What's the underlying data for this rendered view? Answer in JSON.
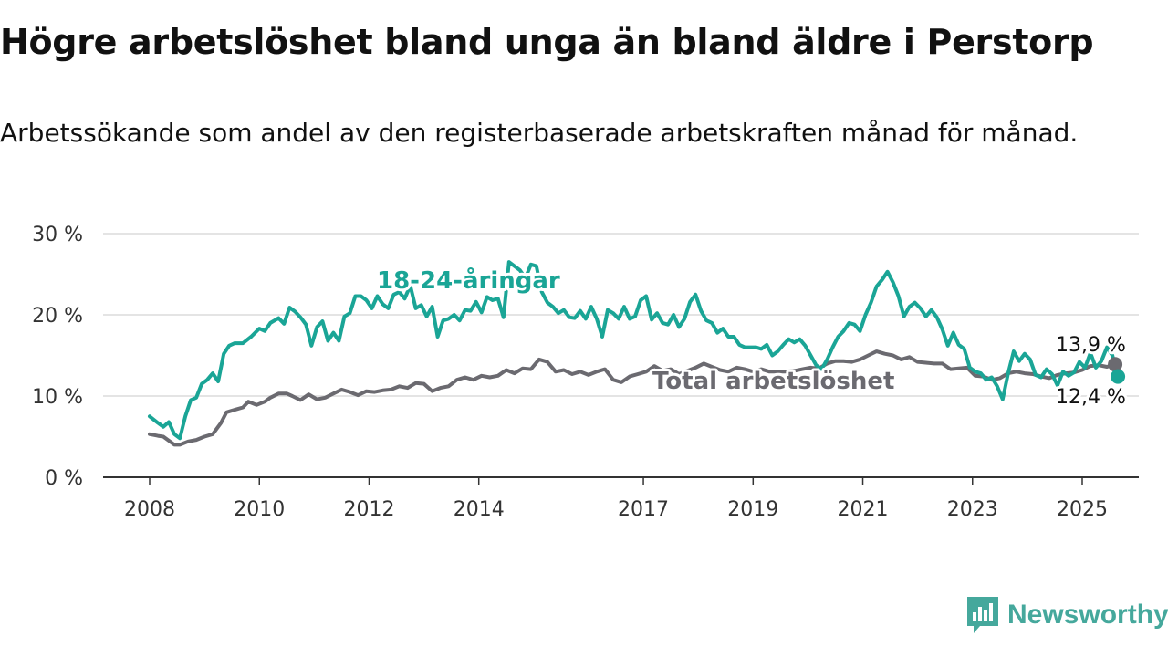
{
  "title": "Högre arbetslöshet bland unga än bland äldre i Perstorp",
  "subtitle": "Arbetssökande som andel av den registerbaserade arbetskraften månad för månad.",
  "brand": {
    "name": "Newsworthy",
    "icon": "bar-chart-icon",
    "color": "#45a89c"
  },
  "chart_data": {
    "type": "line",
    "ylim": [
      0,
      30
    ],
    "xlim": [
      2008.0,
      2025.5
    ],
    "yticks": [
      0,
      10,
      20,
      30
    ],
    "ytick_labels": [
      "0 %",
      "10 %",
      "20 %",
      "30 %"
    ],
    "xticks": [
      2008,
      2010,
      2012,
      2014,
      2017,
      2019,
      2021,
      2023,
      2025
    ],
    "xtick_labels": [
      "2008",
      "2010",
      "2012",
      "2014",
      "2017",
      "2019",
      "2021",
      "2023",
      "2025"
    ],
    "grid": true,
    "series": [
      {
        "name": "18-24-åringar",
        "color": "#1aa596",
        "end_label": "12,4 %",
        "points": [
          [
            2008.0,
            7.5
          ],
          [
            2008.15,
            6.7
          ],
          [
            2008.25,
            6.2
          ],
          [
            2008.35,
            6.8
          ],
          [
            2008.45,
            5.3
          ],
          [
            2008.55,
            4.8
          ],
          [
            2008.65,
            7.5
          ],
          [
            2008.75,
            9.5
          ],
          [
            2008.85,
            9.8
          ],
          [
            2008.95,
            11.5
          ],
          [
            2009.05,
            12.0
          ],
          [
            2009.15,
            12.8
          ],
          [
            2009.25,
            11.8
          ],
          [
            2009.35,
            15.2
          ],
          [
            2009.45,
            16.2
          ],
          [
            2009.55,
            16.5
          ],
          [
            2009.7,
            16.5
          ],
          [
            2009.85,
            17.3
          ],
          [
            2010.0,
            18.3
          ],
          [
            2010.1,
            18.0
          ],
          [
            2010.2,
            19.0
          ],
          [
            2010.35,
            19.6
          ],
          [
            2010.45,
            18.9
          ],
          [
            2010.55,
            20.9
          ],
          [
            2010.65,
            20.4
          ],
          [
            2010.75,
            19.7
          ],
          [
            2010.85,
            18.8
          ],
          [
            2010.95,
            16.2
          ],
          [
            2011.05,
            18.5
          ],
          [
            2011.15,
            19.2
          ],
          [
            2011.25,
            16.8
          ],
          [
            2011.35,
            17.8
          ],
          [
            2011.45,
            16.8
          ],
          [
            2011.55,
            19.8
          ],
          [
            2011.65,
            20.2
          ],
          [
            2011.75,
            22.3
          ],
          [
            2011.85,
            22.3
          ],
          [
            2011.95,
            21.8
          ],
          [
            2012.05,
            20.8
          ],
          [
            2012.15,
            22.3
          ],
          [
            2012.25,
            21.3
          ],
          [
            2012.35,
            20.8
          ],
          [
            2012.45,
            22.5
          ],
          [
            2012.55,
            22.8
          ],
          [
            2012.65,
            22.0
          ],
          [
            2012.75,
            23.6
          ],
          [
            2012.85,
            20.8
          ],
          [
            2012.95,
            21.2
          ],
          [
            2013.05,
            19.8
          ],
          [
            2013.15,
            21.0
          ],
          [
            2013.25,
            17.3
          ],
          [
            2013.35,
            19.3
          ],
          [
            2013.45,
            19.5
          ],
          [
            2013.55,
            20.0
          ],
          [
            2013.65,
            19.3
          ],
          [
            2013.75,
            20.6
          ],
          [
            2013.85,
            20.5
          ],
          [
            2013.95,
            21.6
          ],
          [
            2014.05,
            20.3
          ],
          [
            2014.15,
            22.2
          ],
          [
            2014.25,
            21.8
          ],
          [
            2014.35,
            22.0
          ],
          [
            2014.45,
            19.7
          ],
          [
            2014.55,
            26.5
          ],
          [
            2014.65,
            26.0
          ],
          [
            2014.75,
            25.5
          ],
          [
            2014.85,
            24.5
          ],
          [
            2014.95,
            26.2
          ],
          [
            2015.05,
            26.0
          ],
          [
            2015.15,
            22.8
          ],
          [
            2015.25,
            21.5
          ],
          [
            2015.35,
            21.0
          ],
          [
            2015.45,
            20.2
          ],
          [
            2015.55,
            20.6
          ],
          [
            2015.65,
            19.7
          ],
          [
            2015.75,
            19.6
          ],
          [
            2015.85,
            20.5
          ],
          [
            2015.95,
            19.5
          ],
          [
            2016.05,
            21.0
          ],
          [
            2016.15,
            19.5
          ],
          [
            2016.25,
            17.3
          ],
          [
            2016.35,
            20.6
          ],
          [
            2016.45,
            20.2
          ],
          [
            2016.55,
            19.5
          ],
          [
            2016.65,
            21.0
          ],
          [
            2016.75,
            19.5
          ],
          [
            2016.85,
            19.8
          ],
          [
            2016.95,
            21.8
          ],
          [
            2017.05,
            22.3
          ],
          [
            2017.15,
            19.4
          ],
          [
            2017.25,
            20.2
          ],
          [
            2017.35,
            19.0
          ],
          [
            2017.45,
            18.8
          ],
          [
            2017.55,
            20.0
          ],
          [
            2017.65,
            18.5
          ],
          [
            2017.75,
            19.5
          ],
          [
            2017.85,
            21.6
          ],
          [
            2017.95,
            22.5
          ],
          [
            2018.05,
            20.5
          ],
          [
            2018.15,
            19.3
          ],
          [
            2018.25,
            19.0
          ],
          [
            2018.35,
            17.8
          ],
          [
            2018.45,
            18.3
          ],
          [
            2018.55,
            17.3
          ],
          [
            2018.65,
            17.3
          ],
          [
            2018.75,
            16.3
          ],
          [
            2018.85,
            16.0
          ],
          [
            2018.95,
            16.0
          ],
          [
            2019.05,
            16.0
          ],
          [
            2019.15,
            15.8
          ],
          [
            2019.25,
            16.3
          ],
          [
            2019.35,
            15.0
          ],
          [
            2019.45,
            15.5
          ],
          [
            2019.55,
            16.3
          ],
          [
            2019.65,
            17.0
          ],
          [
            2019.75,
            16.6
          ],
          [
            2019.85,
            17.0
          ],
          [
            2019.95,
            16.2
          ],
          [
            2020.05,
            15.0
          ],
          [
            2020.15,
            13.8
          ],
          [
            2020.25,
            13.3
          ],
          [
            2020.35,
            14.5
          ],
          [
            2020.45,
            16.0
          ],
          [
            2020.55,
            17.3
          ],
          [
            2020.65,
            18.0
          ],
          [
            2020.75,
            19.0
          ],
          [
            2020.85,
            18.8
          ],
          [
            2020.95,
            18.0
          ],
          [
            2021.05,
            20.0
          ],
          [
            2021.15,
            21.5
          ],
          [
            2021.25,
            23.5
          ],
          [
            2021.35,
            24.3
          ],
          [
            2021.45,
            25.3
          ],
          [
            2021.55,
            24.0
          ],
          [
            2021.65,
            22.3
          ],
          [
            2021.75,
            19.8
          ],
          [
            2021.85,
            21.0
          ],
          [
            2021.95,
            21.5
          ],
          [
            2022.05,
            20.8
          ],
          [
            2022.15,
            19.8
          ],
          [
            2022.25,
            20.6
          ],
          [
            2022.35,
            19.7
          ],
          [
            2022.45,
            18.2
          ],
          [
            2022.55,
            16.2
          ],
          [
            2022.65,
            17.8
          ],
          [
            2022.75,
            16.3
          ],
          [
            2022.85,
            15.8
          ],
          [
            2022.95,
            13.5
          ],
          [
            2023.05,
            13.0
          ],
          [
            2023.15,
            12.8
          ],
          [
            2023.25,
            12.0
          ],
          [
            2023.35,
            12.3
          ],
          [
            2023.45,
            11.2
          ],
          [
            2023.55,
            9.6
          ],
          [
            2023.65,
            12.8
          ],
          [
            2023.75,
            15.5
          ],
          [
            2023.85,
            14.3
          ],
          [
            2023.95,
            15.2
          ],
          [
            2024.05,
            14.5
          ],
          [
            2024.15,
            12.6
          ],
          [
            2024.25,
            12.3
          ],
          [
            2024.35,
            13.3
          ],
          [
            2024.45,
            12.7
          ],
          [
            2024.55,
            11.3
          ],
          [
            2024.65,
            13.0
          ],
          [
            2024.75,
            12.5
          ],
          [
            2024.85,
            12.9
          ],
          [
            2024.95,
            14.2
          ],
          [
            2025.05,
            13.5
          ],
          [
            2025.15,
            15.3
          ],
          [
            2025.25,
            13.5
          ],
          [
            2025.35,
            14.3
          ],
          [
            2025.45,
            16.0
          ],
          [
            2025.55,
            15.0
          ],
          [
            2025.65,
            12.4
          ]
        ]
      },
      {
        "name": "Total arbetslöshet",
        "color": "#6b6a70",
        "end_label": "13,9 %",
        "points": [
          [
            2008.0,
            5.3
          ],
          [
            2008.15,
            5.1
          ],
          [
            2008.25,
            5.0
          ],
          [
            2008.35,
            4.5
          ],
          [
            2008.45,
            4.0
          ],
          [
            2008.55,
            4.0
          ],
          [
            2008.7,
            4.4
          ],
          [
            2008.85,
            4.6
          ],
          [
            2009.0,
            5.0
          ],
          [
            2009.15,
            5.3
          ],
          [
            2009.3,
            6.7
          ],
          [
            2009.4,
            8.0
          ],
          [
            2009.55,
            8.3
          ],
          [
            2009.7,
            8.6
          ],
          [
            2009.8,
            9.3
          ],
          [
            2009.95,
            8.9
          ],
          [
            2010.1,
            9.3
          ],
          [
            2010.2,
            9.8
          ],
          [
            2010.35,
            10.3
          ],
          [
            2010.5,
            10.3
          ],
          [
            2010.6,
            10.0
          ],
          [
            2010.75,
            9.5
          ],
          [
            2010.9,
            10.2
          ],
          [
            2011.05,
            9.6
          ],
          [
            2011.2,
            9.8
          ],
          [
            2011.35,
            10.3
          ],
          [
            2011.5,
            10.8
          ],
          [
            2011.65,
            10.5
          ],
          [
            2011.8,
            10.1
          ],
          [
            2011.95,
            10.6
          ],
          [
            2012.1,
            10.5
          ],
          [
            2012.25,
            10.7
          ],
          [
            2012.4,
            10.8
          ],
          [
            2012.55,
            11.2
          ],
          [
            2012.7,
            11.0
          ],
          [
            2012.85,
            11.6
          ],
          [
            2013.0,
            11.5
          ],
          [
            2013.15,
            10.6
          ],
          [
            2013.3,
            11.0
          ],
          [
            2013.45,
            11.2
          ],
          [
            2013.6,
            12.0
          ],
          [
            2013.75,
            12.3
          ],
          [
            2013.9,
            12.0
          ],
          [
            2014.05,
            12.5
          ],
          [
            2014.2,
            12.3
          ],
          [
            2014.35,
            12.5
          ],
          [
            2014.5,
            13.2
          ],
          [
            2014.65,
            12.8
          ],
          [
            2014.8,
            13.4
          ],
          [
            2014.95,
            13.3
          ],
          [
            2015.1,
            14.5
          ],
          [
            2015.25,
            14.2
          ],
          [
            2015.4,
            13.0
          ],
          [
            2015.55,
            13.2
          ],
          [
            2015.7,
            12.7
          ],
          [
            2015.85,
            13.0
          ],
          [
            2016.0,
            12.6
          ],
          [
            2016.15,
            13.0
          ],
          [
            2016.3,
            13.3
          ],
          [
            2016.45,
            12.0
          ],
          [
            2016.6,
            11.7
          ],
          [
            2016.75,
            12.4
          ],
          [
            2016.9,
            12.7
          ],
          [
            2017.05,
            13.0
          ],
          [
            2017.2,
            13.7
          ],
          [
            2017.35,
            13.1
          ],
          [
            2017.5,
            13.3
          ],
          [
            2017.65,
            12.7
          ],
          [
            2017.8,
            13.1
          ],
          [
            2017.95,
            13.5
          ],
          [
            2018.1,
            14.0
          ],
          [
            2018.25,
            13.6
          ],
          [
            2018.4,
            13.2
          ],
          [
            2018.55,
            13.0
          ],
          [
            2018.7,
            13.5
          ],
          [
            2018.85,
            13.3
          ],
          [
            2019.0,
            13.0
          ],
          [
            2019.15,
            13.3
          ],
          [
            2019.3,
            13.0
          ],
          [
            2019.45,
            13.0
          ],
          [
            2019.6,
            13.0
          ],
          [
            2019.75,
            13.1
          ],
          [
            2019.9,
            13.3
          ],
          [
            2020.05,
            13.5
          ],
          [
            2020.2,
            13.4
          ],
          [
            2020.35,
            14.0
          ],
          [
            2020.5,
            14.3
          ],
          [
            2020.65,
            14.3
          ],
          [
            2020.8,
            14.2
          ],
          [
            2020.95,
            14.5
          ],
          [
            2021.1,
            15.0
          ],
          [
            2021.25,
            15.5
          ],
          [
            2021.4,
            15.2
          ],
          [
            2021.55,
            15.0
          ],
          [
            2021.7,
            14.5
          ],
          [
            2021.85,
            14.8
          ],
          [
            2022.0,
            14.2
          ],
          [
            2022.15,
            14.1
          ],
          [
            2022.3,
            14.0
          ],
          [
            2022.45,
            14.0
          ],
          [
            2022.6,
            13.3
          ],
          [
            2022.75,
            13.4
          ],
          [
            2022.9,
            13.5
          ],
          [
            2023.05,
            12.5
          ],
          [
            2023.2,
            12.4
          ],
          [
            2023.35,
            12.0
          ],
          [
            2023.5,
            12.2
          ],
          [
            2023.65,
            12.8
          ],
          [
            2023.8,
            13.0
          ],
          [
            2023.95,
            12.8
          ],
          [
            2024.1,
            12.7
          ],
          [
            2024.25,
            12.4
          ],
          [
            2024.4,
            12.2
          ],
          [
            2024.55,
            12.6
          ],
          [
            2024.7,
            12.8
          ],
          [
            2024.85,
            12.9
          ],
          [
            2025.0,
            13.2
          ],
          [
            2025.15,
            13.7
          ],
          [
            2025.3,
            13.8
          ],
          [
            2025.45,
            13.6
          ],
          [
            2025.6,
            13.9
          ]
        ]
      }
    ]
  }
}
